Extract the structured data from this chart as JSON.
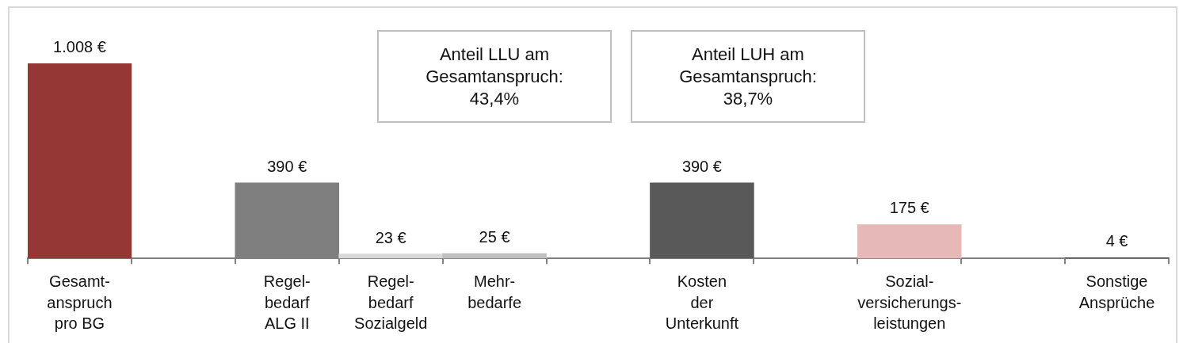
{
  "chart_data": {
    "type": "bar",
    "categories": [
      "Gesamt-\nanspruch\npro BG",
      null,
      "Regel-\nbedarf\nALG II",
      "Regel-\nbedarf\nSozialgeld",
      "Mehr-\nbedarfe",
      null,
      "Kosten\nder\nUnterkunft",
      null,
      "Sozial-\nversicherungs-\nleistungen",
      null,
      "Sonstige\nAnsprüche"
    ],
    "values": [
      1008,
      null,
      390,
      23,
      25,
      null,
      390,
      null,
      175,
      null,
      4
    ],
    "colors": [
      "#953735",
      null,
      "#7f7f7f",
      "#d9d9d9",
      "#bfbfbf",
      null,
      "#595959",
      null,
      "#e6b9b8",
      null,
      "#404040"
    ],
    "value_labels": [
      "1.008 €",
      null,
      "390 €",
      "23 €",
      "25 €",
      null,
      "390 €",
      null,
      "175 €",
      null,
      "4 €"
    ],
    "annotations": [
      "Anteil LLU am\nGesamtanspruch:\n43,4%",
      "Anteil LUH am\nGesamtanspruch:\n38,7%"
    ]
  }
}
